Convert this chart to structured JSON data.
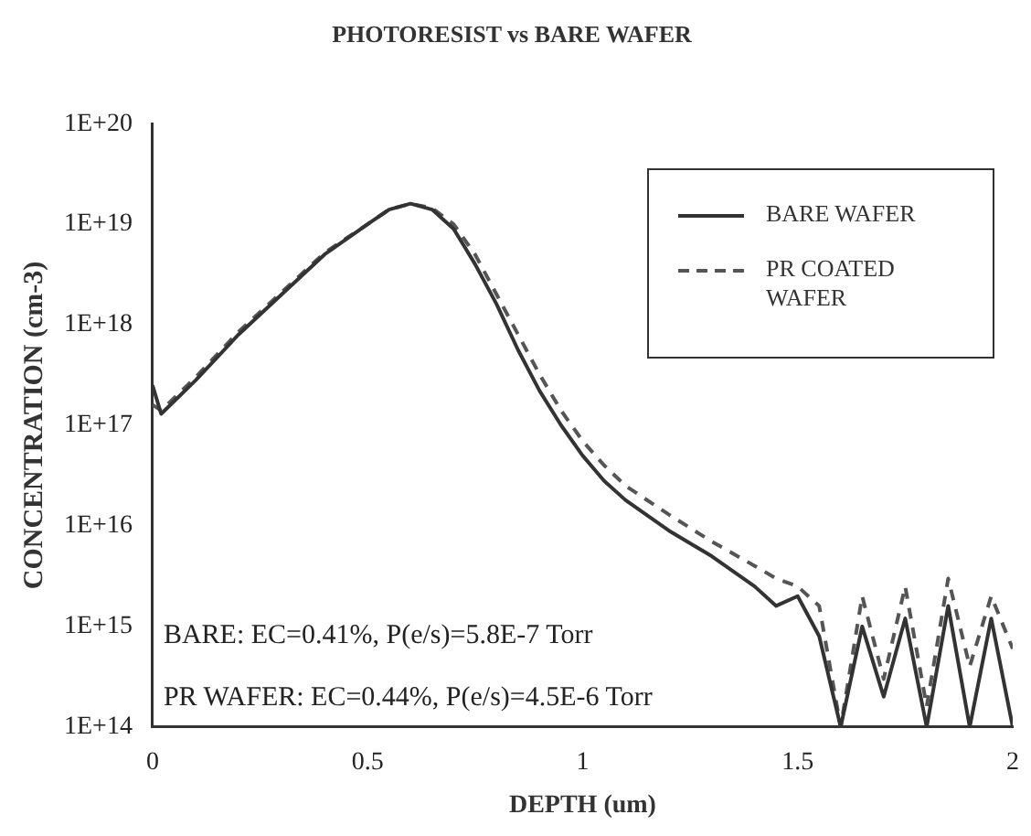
{
  "chart_data": {
    "type": "line",
    "title": "PHOTORESIST vs BARE WAFER",
    "xlabel": "DEPTH (um)",
    "ylabel": "CONCENTRATION (cm-3)",
    "log": "y",
    "grid": false,
    "legend": "top right",
    "marker": "none",
    "x": [
      0,
      0.02,
      0.1,
      0.2,
      0.3,
      0.4,
      0.5,
      0.55,
      0.6,
      0.65,
      0.7,
      0.75,
      0.8,
      0.85,
      0.9,
      0.95,
      1.0,
      1.05,
      1.1,
      1.2,
      1.3,
      1.4,
      1.45,
      1.5,
      1.55,
      1.6,
      1.65,
      1.7,
      1.75,
      1.8,
      1.85,
      1.9,
      1.95,
      2.0
    ],
    "series": [
      {
        "name": "BARE WAFER",
        "color": "#333333",
        "line_style": "solid",
        "values": [
          2.5e+17,
          1.3e+17,
          2.8e+17,
          8e+17,
          2e+18,
          5e+18,
          1e+19,
          1.4e+19,
          1.6e+19,
          1.4e+19,
          9e+18,
          4e+18,
          1.6e+18,
          5.6e+17,
          2.2e+17,
          1e+17,
          5e+16,
          2.8e+16,
          1.8e+16,
          9000000000000000.0,
          5000000000000000.0,
          2500000000000000.0,
          1600000000000000.0,
          2000000000000000.0,
          800000000000000.0,
          100000000000000.0,
          1000000000000000.0,
          200000000000000.0,
          1200000000000000.0,
          100000000000000.0,
          1600000000000000.0,
          100000000000000.0,
          1200000000000000.0,
          100000000000000.0
        ]
      },
      {
        "name": "PR COATED WAFER",
        "color": "#555555",
        "line_style": "dashed",
        "values": [
          1.6e+17,
          1.4e+17,
          3e+17,
          8.5e+17,
          2.1e+18,
          5.2e+18,
          1e+19,
          1.4e+19,
          1.6e+19,
          1.45e+19,
          1e+19,
          5e+18,
          2e+18,
          8e+17,
          3.2e+17,
          1.4e+17,
          7e+16,
          4e+16,
          2.5e+16,
          1.3e+16,
          7000000000000000.0,
          4000000000000000.0,
          3000000000000000.0,
          2500000000000000.0,
          1600000000000000.0,
          100000000000000.0,
          2000000000000000.0,
          300000000000000.0,
          2500000000000000.0,
          160000000000000.0,
          3000000000000000.0,
          400000000000000.0,
          2000000000000000.0,
          600000000000000.0
        ]
      }
    ],
    "xlim": [
      0,
      2
    ],
    "xticks": [
      0,
      0.5,
      1,
      1.5,
      2
    ],
    "ylim": [
      100000000000000.0,
      1e+20
    ],
    "yticks": [
      {
        "value": 100000000000000.0,
        "label": "1E+14"
      },
      {
        "value": 1000000000000000.0,
        "label": "1E+15"
      },
      {
        "value": 1e+16,
        "label": "1E+16"
      },
      {
        "value": 1e+17,
        "label": "1E+17"
      },
      {
        "value": 1e+18,
        "label": "1E+18"
      },
      {
        "value": 1e+19,
        "label": "1E+19"
      },
      {
        "value": 1e+20,
        "label": "1E+20"
      }
    ],
    "annotations": [
      "BARE: EC=0.41%, P(e/s)=5.8E-7 Torr",
      "PR WAFER: EC=0.44%, P(e/s)=4.5E-6 Torr"
    ]
  }
}
